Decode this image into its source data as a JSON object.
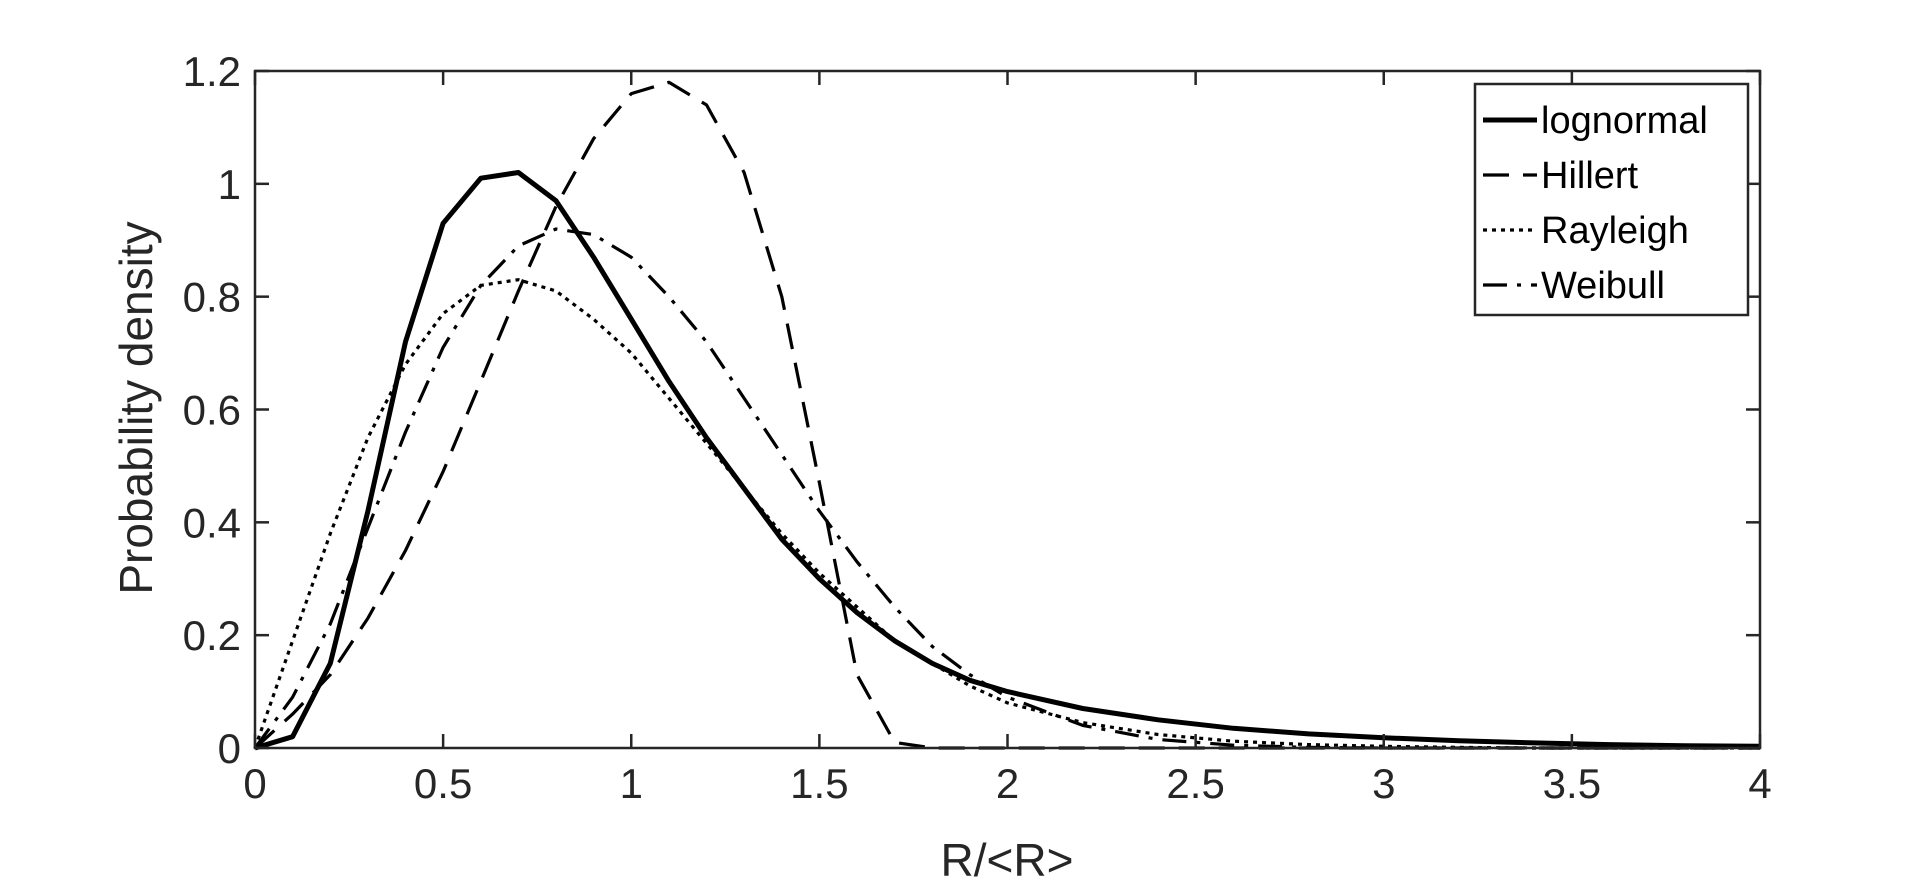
{
  "chart_data": {
    "type": "line",
    "xlabel": "R/<R>",
    "ylabel": "Probability density",
    "xlim": [
      0,
      4
    ],
    "ylim": [
      0,
      1.2
    ],
    "xticks": [
      "0",
      "0.5",
      "1",
      "1.5",
      "2",
      "2.5",
      "3",
      "3.5",
      "4"
    ],
    "yticks": [
      "0",
      "0.2",
      "0.4",
      "0.6",
      "0.8",
      "1",
      "1.2"
    ],
    "grid": false,
    "legend_position": "top-right",
    "x": [
      0,
      0.1,
      0.2,
      0.3,
      0.4,
      0.5,
      0.6,
      0.7,
      0.8,
      0.9,
      1.0,
      1.1,
      1.2,
      1.3,
      1.4,
      1.5,
      1.6,
      1.7,
      1.8,
      1.9,
      2.0,
      2.2,
      2.4,
      2.6,
      2.8,
      3.0,
      3.2,
      3.4,
      3.6,
      3.8,
      4.0
    ],
    "series": [
      {
        "name": "lognormal",
        "style": "solid",
        "values": [
          0,
          0.02,
          0.15,
          0.42,
          0.72,
          0.93,
          1.01,
          1.02,
          0.97,
          0.87,
          0.76,
          0.65,
          0.55,
          0.46,
          0.37,
          0.3,
          0.24,
          0.19,
          0.15,
          0.12,
          0.1,
          0.07,
          0.05,
          0.035,
          0.025,
          0.018,
          0.013,
          0.009,
          0.006,
          0.004,
          0.003
        ]
      },
      {
        "name": "Hillert",
        "style": "dashed",
        "values": [
          0,
          0.06,
          0.13,
          0.23,
          0.35,
          0.49,
          0.65,
          0.81,
          0.96,
          1.08,
          1.16,
          1.18,
          1.14,
          1.02,
          0.8,
          0.47,
          0.13,
          0.01,
          0,
          0,
          0,
          0,
          0,
          0,
          0,
          0,
          0,
          0,
          0,
          0,
          0
        ]
      },
      {
        "name": "Rayleigh",
        "style": "dotted",
        "values": [
          0,
          0.19,
          0.38,
          0.55,
          0.68,
          0.77,
          0.82,
          0.83,
          0.81,
          0.76,
          0.7,
          0.62,
          0.54,
          0.46,
          0.38,
          0.31,
          0.25,
          0.19,
          0.15,
          0.11,
          0.08,
          0.045,
          0.024,
          0.012,
          0.006,
          0.003,
          0.001,
          0,
          0,
          0,
          0
        ]
      },
      {
        "name": "Weibull",
        "style": "dashdot",
        "values": [
          0,
          0.09,
          0.22,
          0.39,
          0.56,
          0.71,
          0.82,
          0.89,
          0.92,
          0.91,
          0.87,
          0.8,
          0.72,
          0.62,
          0.52,
          0.42,
          0.33,
          0.25,
          0.18,
          0.13,
          0.09,
          0.04,
          0.015,
          0.005,
          0.001,
          0,
          0,
          0,
          0,
          0,
          0
        ]
      }
    ]
  }
}
